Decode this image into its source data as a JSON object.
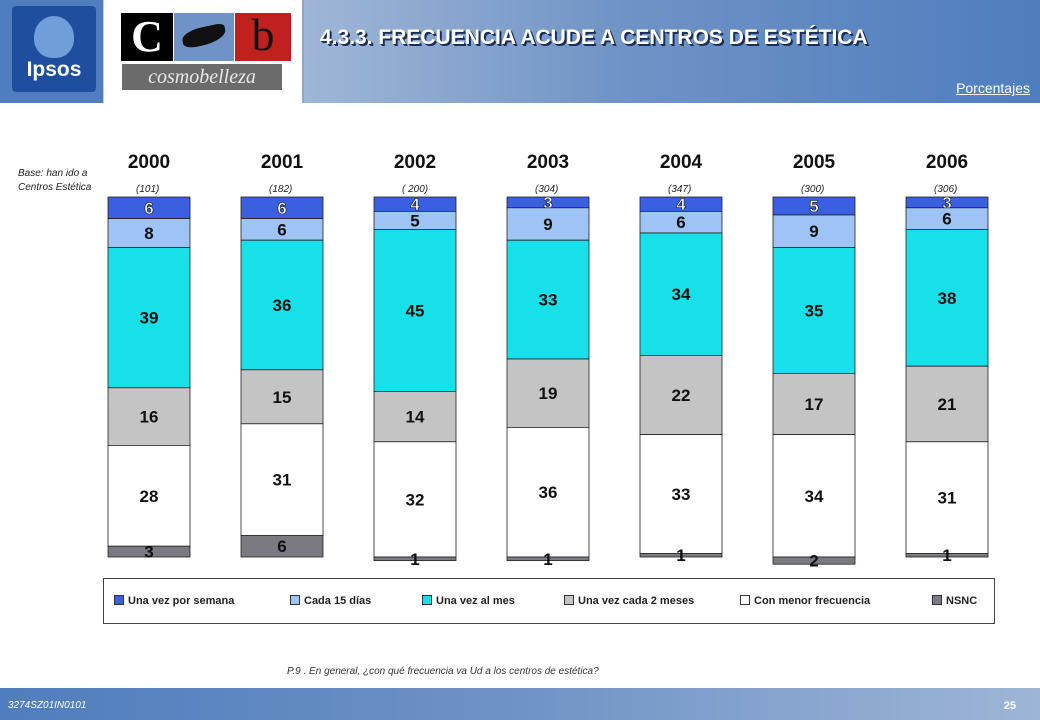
{
  "header": {
    "title": "4.3.3. FRECUENCIA ACUDE A CENTROS DE ESTÉTICA",
    "subtitle": "Porcentajes",
    "logo_ipsos_text": "Ipsos",
    "logo_cb_c": "C",
    "logo_cb_b": "b",
    "logo_cb_word": "cosmobelleza"
  },
  "base": {
    "line1": "Base: han ido a",
    "line2": "Centros Estética"
  },
  "question": "P.9 .    En general, ¿con qué frecuencia va Ud a los centros de estética?",
  "footer": {
    "code": "3274SZ01IN0101",
    "page": "25"
  },
  "colors": {
    "Una vez por semana": "#3a5fe0",
    "Cada 15 días": "#9ec3f5",
    "Una vez al mes": "#18e0e8",
    "Una vez cada 2 meses": "#c4c4c4",
    "Con menor frecuencia": "#ffffff",
    "NSNC": "#7a7a80"
  },
  "chart_data": {
    "type": "bar",
    "stacked": true,
    "categories": [
      "2000",
      "2001",
      "2002",
      "2003",
      "2004",
      "2005",
      "2006"
    ],
    "bases": [
      "(101)",
      "(182)",
      "( 200)",
      "(304)",
      "(347)",
      "(300)",
      "(306)"
    ],
    "series": [
      {
        "name": "Una vez por semana",
        "values": [
          6,
          6,
          4,
          3,
          4,
          5,
          3
        ]
      },
      {
        "name": "Cada 15 días",
        "values": [
          8,
          6,
          5,
          9,
          6,
          9,
          6
        ]
      },
      {
        "name": "Una vez al mes",
        "values": [
          39,
          36,
          45,
          33,
          34,
          35,
          38
        ]
      },
      {
        "name": "Una vez cada 2 meses",
        "values": [
          16,
          15,
          14,
          19,
          22,
          17,
          21
        ]
      },
      {
        "name": "Con menor frecuencia",
        "values": [
          28,
          31,
          32,
          36,
          33,
          34,
          31
        ]
      },
      {
        "name": "NSNC",
        "values": [
          3,
          6,
          1,
          1,
          1,
          2,
          1
        ]
      }
    ],
    "legend_position": "bottom",
    "grid": false
  }
}
